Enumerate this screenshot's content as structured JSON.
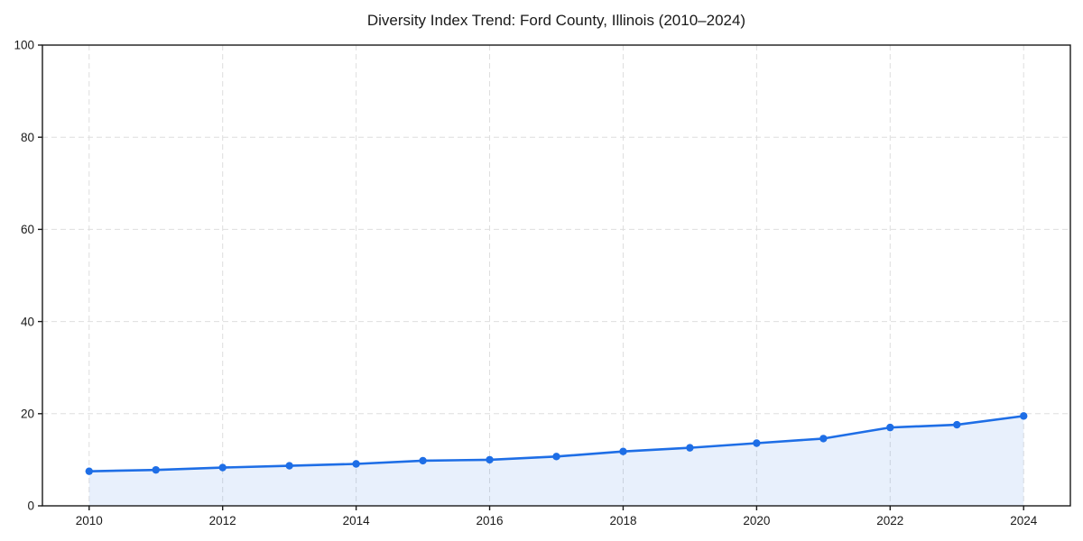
{
  "chart_data": {
    "type": "area",
    "title": "Diversity Index Trend: Ford County, Illinois (2010–2024)",
    "series": [
      {
        "name": "Diversity Index",
        "x": [
          2010,
          2011,
          2012,
          2013,
          2014,
          2015,
          2016,
          2017,
          2018,
          2019,
          2020,
          2021,
          2022,
          2023,
          2024
        ],
        "values": [
          7.5,
          7.8,
          8.3,
          8.7,
          9.1,
          9.8,
          10.0,
          10.7,
          11.8,
          12.6,
          13.6,
          14.6,
          17.0,
          17.6,
          19.5
        ]
      }
    ],
    "xlabel": "",
    "ylabel": "",
    "xlim": [
      2009.3,
      2024.7
    ],
    "ylim": [
      0,
      100
    ],
    "xticks": [
      2010,
      2012,
      2014,
      2016,
      2018,
      2020,
      2022,
      2024
    ],
    "yticks": [
      0,
      20,
      40,
      60,
      80,
      100
    ],
    "grid": {
      "visible": true,
      "style": "dashed",
      "color": "#dedede"
    },
    "legend_position": "none",
    "marker": "circle",
    "colors": {
      "line": "#1e6ee6",
      "marker": "#1e6ee6",
      "fill": "rgba(30, 110, 230, 0.10)",
      "axis": "#1a1a1a",
      "tick_label": "#1a1a1a",
      "title": "#1a1a1a",
      "background": "#ffffff"
    }
  }
}
